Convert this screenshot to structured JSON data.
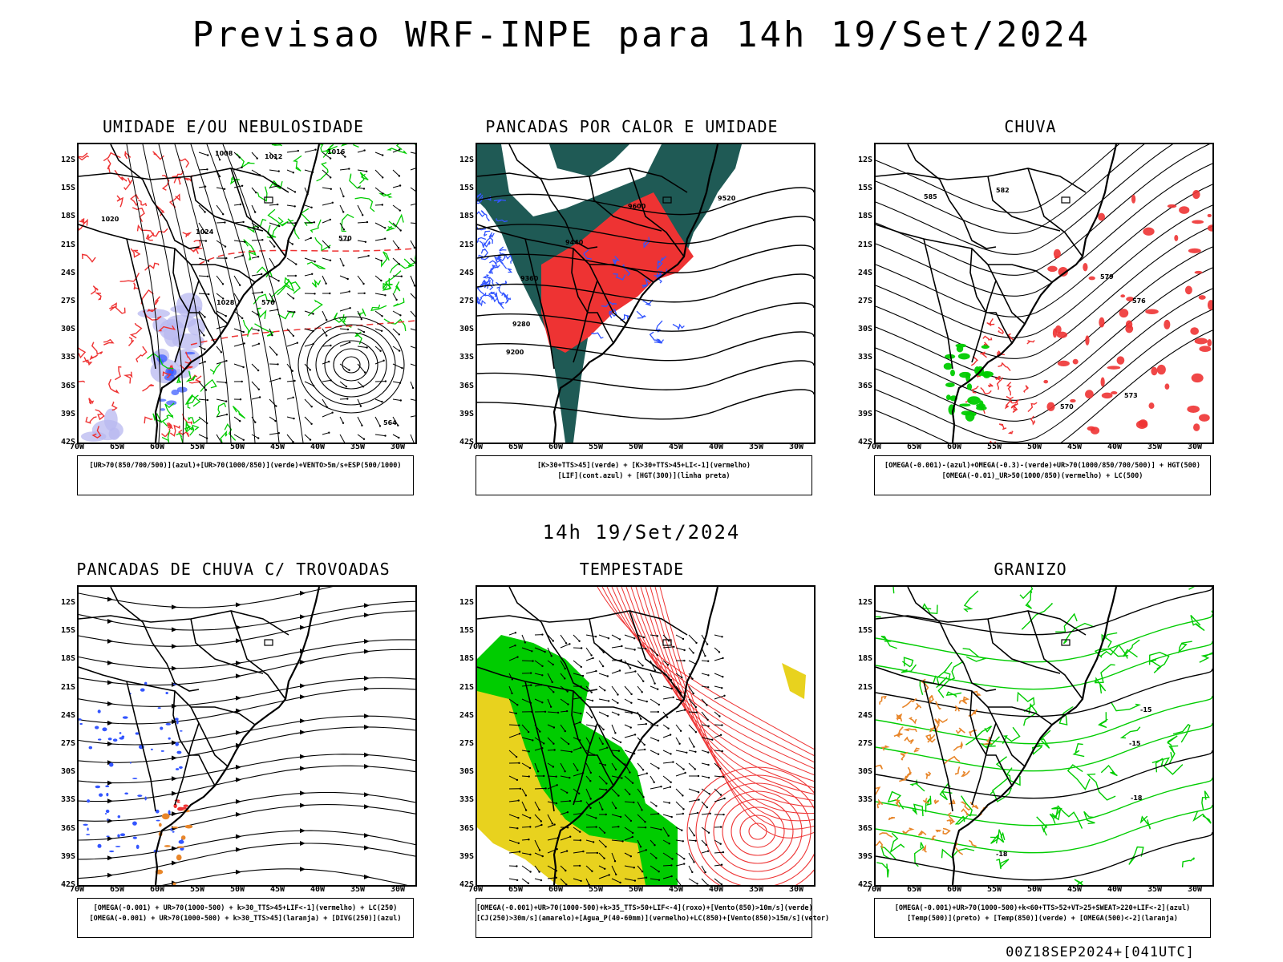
{
  "title": "Previsao WRF-INPE  para 14h 19/Set/2024",
  "subtitle": "14h 19/Set/2024",
  "footer": "00Z18SEP2024+[041UTC]",
  "lat_labels": [
    "12S",
    "15S",
    "18S",
    "21S",
    "24S",
    "27S",
    "30S",
    "33S",
    "36S",
    "39S",
    "42S"
  ],
  "lon_labels": [
    "70W",
    "65W",
    "60W",
    "55W",
    "50W",
    "45W",
    "40W",
    "35W",
    "30W"
  ],
  "colors": {
    "red": "#ee3333",
    "green": "#00cc00",
    "blue": "#3355ff",
    "dark_teal": "#1f5a55",
    "yellow": "#e8d21e",
    "orange": "#e8862a",
    "lavender": "#b8b8f0"
  },
  "panels": [
    {
      "id": "umidade",
      "title": "UMIDADE E/OU NEBULOSIDADE",
      "legend": [
        "[UR>70(850/700/500)](azul)+[UR>70(1000/850)](verde)+VENTO>5m/s+ESP(500/1000)"
      ],
      "contour_labels": [
        "1008",
        "1012",
        "1016",
        "1020",
        "1024",
        "1028",
        "576",
        "570",
        "564"
      ]
    },
    {
      "id": "pancadas_calor",
      "title": "PANCADAS POR CALOR E UMIDADE",
      "legend": [
        "[K>30+TTS>45](verde) + [K>30+TTS>45+LI<-1](vermelho)",
        "[LIF](cont.azul) + [HGT(300)](linha preta)"
      ],
      "contour_labels": [
        "9600",
        "9520",
        "9440",
        "9360",
        "9280",
        "9200"
      ]
    },
    {
      "id": "chuva",
      "title": "CHUVA",
      "legend": [
        "[OMEGA(-0.001)-(azul)+OMEGA(-0.3)-(verde)+UR>70(1000/850/700/500)] + HGT(500)",
        "[OMEGA(-0.01)_UR>50(1000/850)(vermelho) + LC(500)"
      ],
      "contour_labels": [
        "585",
        "582",
        "579",
        "576",
        "573",
        "570"
      ]
    },
    {
      "id": "trovoadas",
      "title": "PANCADAS DE CHUVA C/ TROVOADAS",
      "legend": [
        "[OMEGA(-0.001) + UR>70(1000-500) + k>30_TTS>45+LIF<-1](vermelho) + LC(250)",
        "[OMEGA(-0.001) + UR>70(1000-500) + k>30_TTS>45](laranja) + [DIVG(250)](azul)"
      ],
      "contour_labels": []
    },
    {
      "id": "tempestade",
      "title": "TEMPESTADE",
      "legend": [
        "[OMEGA(-0.001)+UR>70(1000-500)+k>35_TTS>50+LIF<-4](roxo)+[Vento(850)>10m/s](verde)",
        "[CJ(250)>30m/s](amarelo)+[Agua_P(40-60mm)](vermelho)+LC(850)+[Vento(850)>15m/s](vetor)"
      ],
      "contour_labels": []
    },
    {
      "id": "granizo",
      "title": "GRANIZO",
      "legend": [
        "[OMEGA(-0.001)+UR>70(1000-500)+k<60+TTS>52+VT>25+SWEAT>220+LIF<-2](azul)",
        "[Temp(500)](preto) + [Temp(850)](verde) + [OMEGA(500)<-2](laranja)"
      ],
      "contour_labels": [
        "-15",
        "-15",
        "-18",
        "-18"
      ]
    }
  ]
}
